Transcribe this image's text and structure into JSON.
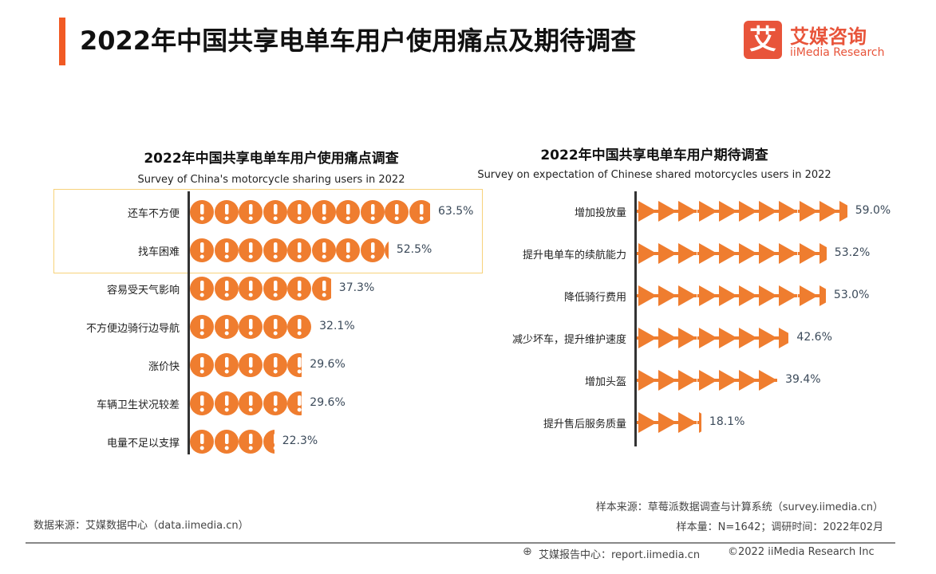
{
  "header": {
    "title": "2022年中国共享电单车用户使用痛点及期待调查",
    "logo_mark": "艾",
    "logo_cn": "艾媒咨询",
    "logo_en": "iiMedia Research"
  },
  "chart_data": [
    {
      "type": "bar",
      "orientation": "horizontal",
      "title": "2022年中国共享电单车用户使用痛点调查",
      "subtitle": "Survey of China's motorcycle sharing users in 2022",
      "icon": "exclamation-circle-icon",
      "color": "#ef7d2f",
      "highlighted": [
        "还车不方便",
        "找车困难"
      ],
      "categories": [
        "还车不方便",
        "找车困难",
        "容易受天气影响",
        "不方便边骑行边导航",
        "涨价快",
        "车辆卫生状况较差",
        "电量不足以支撑"
      ],
      "values": [
        63.5,
        52.5,
        37.3,
        32.1,
        29.6,
        29.6,
        22.3
      ],
      "labels": [
        "63.5%",
        "52.5%",
        "37.3%",
        "32.1%",
        "29.6%",
        "29.6%",
        "22.3%"
      ]
    },
    {
      "type": "bar",
      "orientation": "horizontal",
      "title": "2022年中国共享电单车用户期待调查",
      "subtitle": "Survey on expectation of Chinese shared motorcycles users in 2022",
      "icon": "triangle-arrow-icon",
      "color": "#ef7d2f",
      "categories": [
        "增加投放量",
        "提升电单车的续航能力",
        "降低骑行费用",
        "减少坏车，提升维护速度",
        "增加头盔",
        "提升售后服务质量"
      ],
      "values": [
        59.0,
        53.2,
        53.0,
        42.6,
        39.4,
        18.1
      ],
      "labels": [
        "59.0%",
        "53.2%",
        "53.0%",
        "42.6%",
        "39.4%",
        "18.1%"
      ]
    }
  ],
  "footer": {
    "data_source": "数据来源：艾媒数据中心（data.iimedia.cn）",
    "sample_source": "样本来源：草莓派数据调查与计算系统（survey.iimedia.cn）",
    "sample_size": "样本量：N=1642；调研时间：2022年02月",
    "report_center": "艾媒报告中心：report.iimedia.cn",
    "copyright": "©2022  iiMedia Research  Inc"
  }
}
